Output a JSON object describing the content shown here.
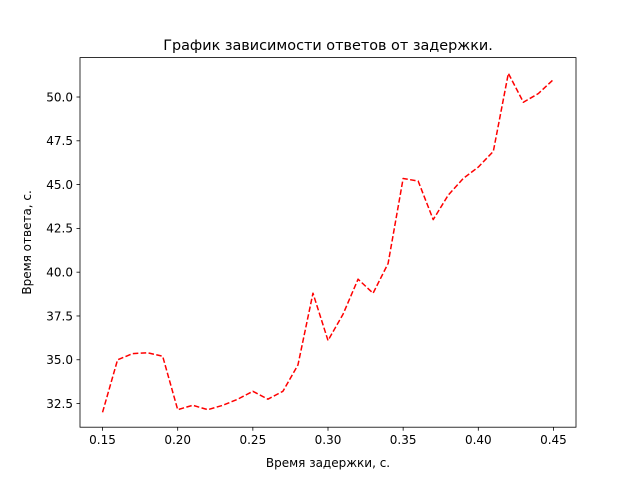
{
  "chart_data": {
    "type": "line",
    "title": "График зависимости ответов от задержки.",
    "xlabel": "Время задержки, с.",
    "ylabel": "Время ответа, с.",
    "xlim": [
      0.135,
      0.465
    ],
    "ylim": [
      31.15,
      52.25
    ],
    "xticks": [
      0.15,
      0.2,
      0.25,
      0.3,
      0.35,
      0.4,
      0.45
    ],
    "xtick_labels": [
      "0.15",
      "0.20",
      "0.25",
      "0.30",
      "0.35",
      "0.40",
      "0.45"
    ],
    "yticks": [
      32.5,
      35.0,
      37.5,
      40.0,
      42.5,
      45.0,
      47.5,
      50.0
    ],
    "ytick_labels": [
      "32.5",
      "35.0",
      "37.5",
      "40.0",
      "42.5",
      "45.0",
      "47.5",
      "50.0"
    ],
    "grid": false,
    "series": [
      {
        "color": "#ff0000",
        "line_style": "dashed",
        "x": [
          0.15,
          0.16,
          0.17,
          0.18,
          0.19,
          0.2,
          0.21,
          0.22,
          0.23,
          0.24,
          0.25,
          0.26,
          0.27,
          0.28,
          0.29,
          0.3,
          0.31,
          0.32,
          0.33,
          0.34,
          0.35,
          0.36,
          0.37,
          0.38,
          0.39,
          0.4,
          0.41,
          0.42,
          0.43,
          0.44,
          0.45
        ],
        "y": [
          32.0,
          35.0,
          35.35,
          35.4,
          35.2,
          32.15,
          32.4,
          32.15,
          32.4,
          32.75,
          33.2,
          32.75,
          33.2,
          34.7,
          38.8,
          36.1,
          37.6,
          39.6,
          38.8,
          40.5,
          45.35,
          45.2,
          43.0,
          44.4,
          45.35,
          46.0,
          46.9,
          51.35,
          49.7,
          50.2,
          51.0
        ]
      }
    ]
  }
}
